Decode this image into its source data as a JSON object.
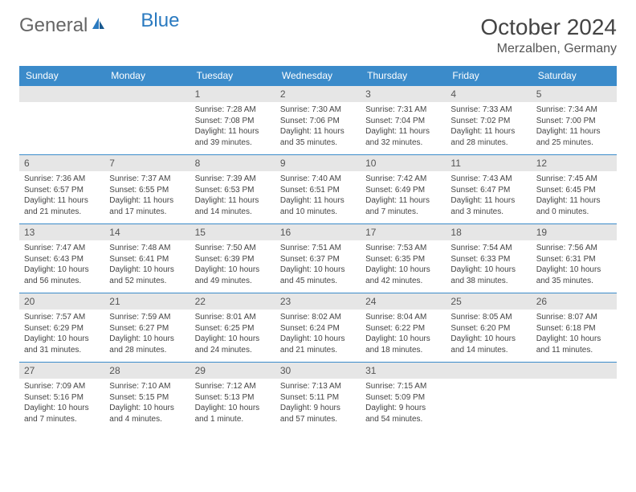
{
  "brand": {
    "part1": "General",
    "part2": "Blue"
  },
  "title": "October 2024",
  "location": "Merzalben, Germany",
  "colors": {
    "header_bg": "#3b8bca",
    "header_text": "#ffffff",
    "daynum_bg": "#e6e6e6",
    "border": "#3b8bca",
    "brand_blue": "#2a7ac0"
  },
  "weekdays": [
    "Sunday",
    "Monday",
    "Tuesday",
    "Wednesday",
    "Thursday",
    "Friday",
    "Saturday"
  ],
  "weeks": [
    [
      null,
      null,
      {
        "n": "1",
        "sr": "7:28 AM",
        "ss": "7:08 PM",
        "dl": "11 hours and 39 minutes."
      },
      {
        "n": "2",
        "sr": "7:30 AM",
        "ss": "7:06 PM",
        "dl": "11 hours and 35 minutes."
      },
      {
        "n": "3",
        "sr": "7:31 AM",
        "ss": "7:04 PM",
        "dl": "11 hours and 32 minutes."
      },
      {
        "n": "4",
        "sr": "7:33 AM",
        "ss": "7:02 PM",
        "dl": "11 hours and 28 minutes."
      },
      {
        "n": "5",
        "sr": "7:34 AM",
        "ss": "7:00 PM",
        "dl": "11 hours and 25 minutes."
      }
    ],
    [
      {
        "n": "6",
        "sr": "7:36 AM",
        "ss": "6:57 PM",
        "dl": "11 hours and 21 minutes."
      },
      {
        "n": "7",
        "sr": "7:37 AM",
        "ss": "6:55 PM",
        "dl": "11 hours and 17 minutes."
      },
      {
        "n": "8",
        "sr": "7:39 AM",
        "ss": "6:53 PM",
        "dl": "11 hours and 14 minutes."
      },
      {
        "n": "9",
        "sr": "7:40 AM",
        "ss": "6:51 PM",
        "dl": "11 hours and 10 minutes."
      },
      {
        "n": "10",
        "sr": "7:42 AM",
        "ss": "6:49 PM",
        "dl": "11 hours and 7 minutes."
      },
      {
        "n": "11",
        "sr": "7:43 AM",
        "ss": "6:47 PM",
        "dl": "11 hours and 3 minutes."
      },
      {
        "n": "12",
        "sr": "7:45 AM",
        "ss": "6:45 PM",
        "dl": "11 hours and 0 minutes."
      }
    ],
    [
      {
        "n": "13",
        "sr": "7:47 AM",
        "ss": "6:43 PM",
        "dl": "10 hours and 56 minutes."
      },
      {
        "n": "14",
        "sr": "7:48 AM",
        "ss": "6:41 PM",
        "dl": "10 hours and 52 minutes."
      },
      {
        "n": "15",
        "sr": "7:50 AM",
        "ss": "6:39 PM",
        "dl": "10 hours and 49 minutes."
      },
      {
        "n": "16",
        "sr": "7:51 AM",
        "ss": "6:37 PM",
        "dl": "10 hours and 45 minutes."
      },
      {
        "n": "17",
        "sr": "7:53 AM",
        "ss": "6:35 PM",
        "dl": "10 hours and 42 minutes."
      },
      {
        "n": "18",
        "sr": "7:54 AM",
        "ss": "6:33 PM",
        "dl": "10 hours and 38 minutes."
      },
      {
        "n": "19",
        "sr": "7:56 AM",
        "ss": "6:31 PM",
        "dl": "10 hours and 35 minutes."
      }
    ],
    [
      {
        "n": "20",
        "sr": "7:57 AM",
        "ss": "6:29 PM",
        "dl": "10 hours and 31 minutes."
      },
      {
        "n": "21",
        "sr": "7:59 AM",
        "ss": "6:27 PM",
        "dl": "10 hours and 28 minutes."
      },
      {
        "n": "22",
        "sr": "8:01 AM",
        "ss": "6:25 PM",
        "dl": "10 hours and 24 minutes."
      },
      {
        "n": "23",
        "sr": "8:02 AM",
        "ss": "6:24 PM",
        "dl": "10 hours and 21 minutes."
      },
      {
        "n": "24",
        "sr": "8:04 AM",
        "ss": "6:22 PM",
        "dl": "10 hours and 18 minutes."
      },
      {
        "n": "25",
        "sr": "8:05 AM",
        "ss": "6:20 PM",
        "dl": "10 hours and 14 minutes."
      },
      {
        "n": "26",
        "sr": "8:07 AM",
        "ss": "6:18 PM",
        "dl": "10 hours and 11 minutes."
      }
    ],
    [
      {
        "n": "27",
        "sr": "7:09 AM",
        "ss": "5:16 PM",
        "dl": "10 hours and 7 minutes."
      },
      {
        "n": "28",
        "sr": "7:10 AM",
        "ss": "5:15 PM",
        "dl": "10 hours and 4 minutes."
      },
      {
        "n": "29",
        "sr": "7:12 AM",
        "ss": "5:13 PM",
        "dl": "10 hours and 1 minute."
      },
      {
        "n": "30",
        "sr": "7:13 AM",
        "ss": "5:11 PM",
        "dl": "9 hours and 57 minutes."
      },
      {
        "n": "31",
        "sr": "7:15 AM",
        "ss": "5:09 PM",
        "dl": "9 hours and 54 minutes."
      },
      null,
      null
    ]
  ],
  "labels": {
    "sunrise": "Sunrise:",
    "sunset": "Sunset:",
    "daylight": "Daylight:"
  }
}
